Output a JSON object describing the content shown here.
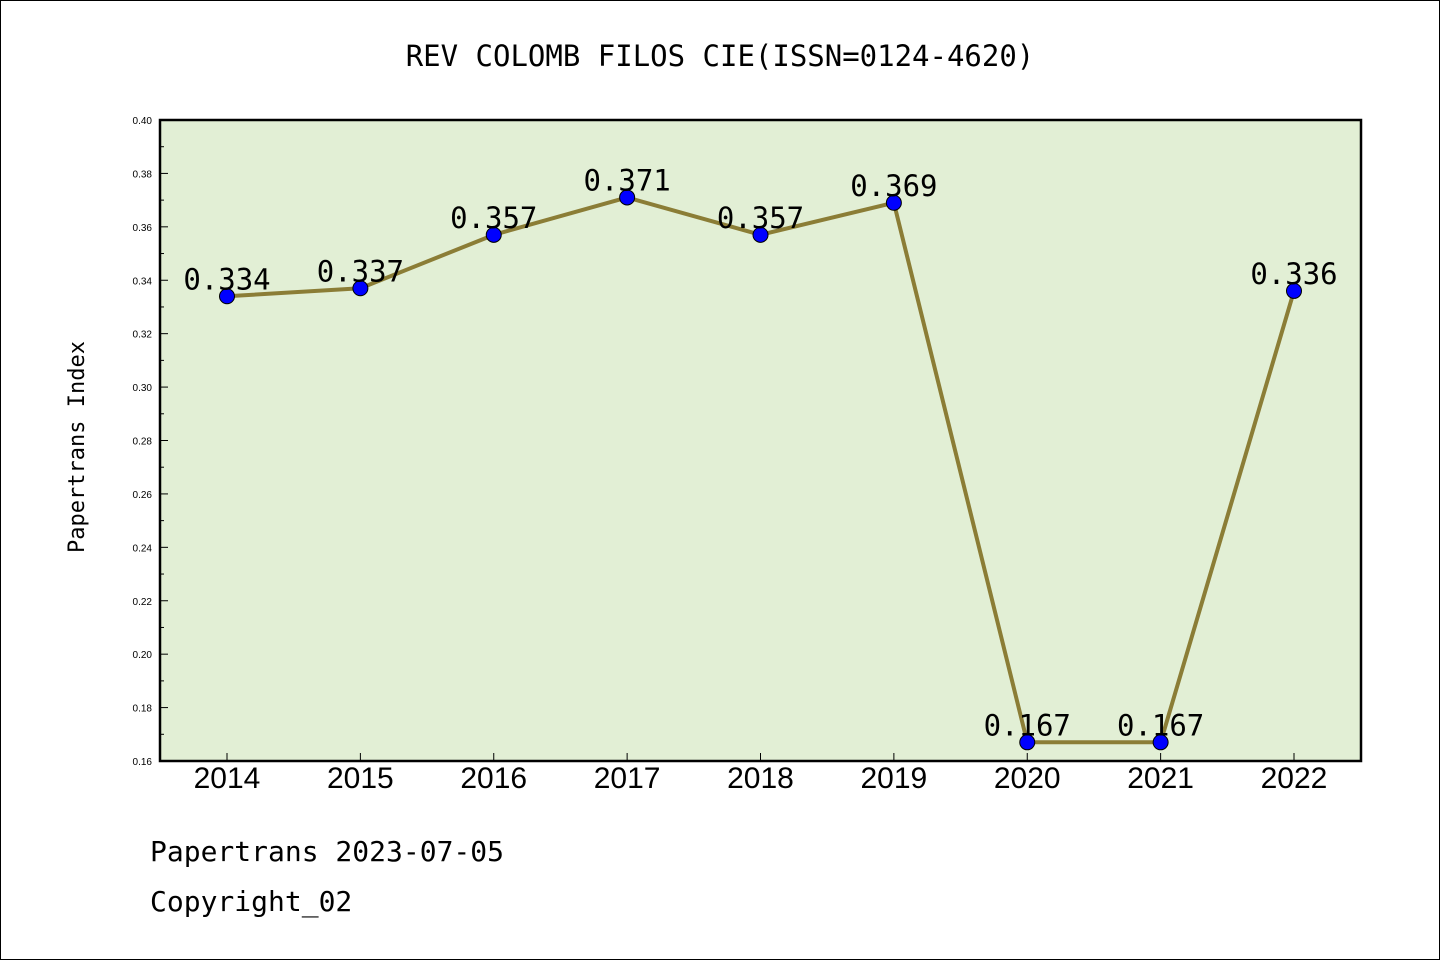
{
  "chart_data": {
    "type": "line",
    "title": "REV COLOMB FILOS CIE(ISSN=0124-4620)",
    "xlabel": "",
    "ylabel": "Papertrans Index",
    "categories": [
      "2014",
      "2015",
      "2016",
      "2017",
      "2018",
      "2019",
      "2020",
      "2021",
      "2022"
    ],
    "values": [
      0.334,
      0.337,
      0.357,
      0.371,
      0.357,
      0.369,
      0.167,
      0.167,
      0.336
    ],
    "data_labels": [
      "0.334",
      "0.337",
      "0.357",
      "0.371",
      "0.357",
      "0.369",
      "0.167",
      "0.167",
      "0.336"
    ],
    "ylim": [
      0.16,
      0.4
    ],
    "yticks": [
      "0.16",
      "0.18",
      "0.20",
      "0.22",
      "0.24",
      "0.26",
      "0.28",
      "0.30",
      "0.32",
      "0.34",
      "0.36",
      "0.38",
      "0.40"
    ],
    "grid": false,
    "colors": {
      "plot_background": "#e2efd5",
      "line": "#8b7d36",
      "marker": "#0000ff"
    }
  },
  "footer": {
    "line1": "Papertrans 2023-07-05",
    "line2": "Copyright_02"
  }
}
